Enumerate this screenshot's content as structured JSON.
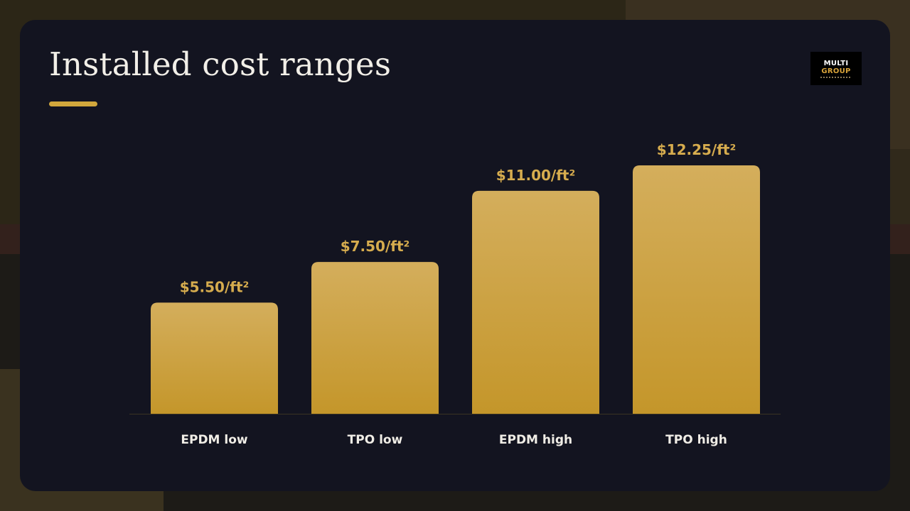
{
  "slide": {
    "title": "Installed cost ranges",
    "accent_color": "#d2a73c",
    "logo": {
      "line1": "MULTI",
      "line2": "GROUP"
    }
  },
  "chart_data": {
    "type": "bar",
    "categories": [
      "EPDM low",
      "TPO low",
      "EPDM high",
      "TPO high"
    ],
    "values": [
      5.5,
      7.5,
      11.0,
      12.25
    ],
    "data_labels": [
      "$5.50/ft²",
      "$7.50/ft²",
      "$11.00/ft²",
      "$12.25/ft²"
    ],
    "title": "Installed cost ranges",
    "xlabel": "",
    "ylabel": "",
    "ylim": [
      0,
      12.25
    ],
    "grid": false,
    "bar_color_top": "#d4ae5c",
    "bar_color_bottom": "#c4962a"
  }
}
